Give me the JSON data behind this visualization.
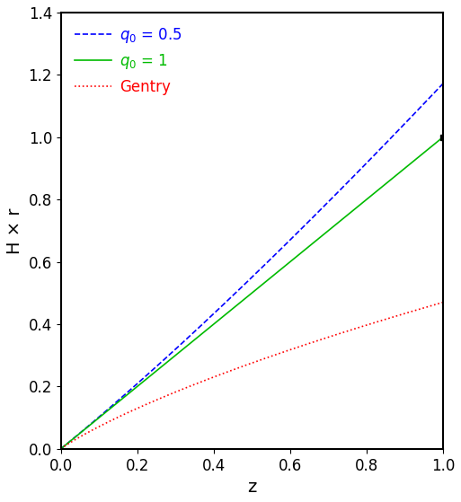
{
  "title": "",
  "xlabel": "z",
  "ylabel": "H × r",
  "xlim": [
    0,
    1
  ],
  "ylim": [
    0,
    1.4
  ],
  "xticks": [
    0,
    0.2,
    0.4,
    0.6,
    0.8,
    1.0
  ],
  "yticks": [
    0,
    0.2,
    0.4,
    0.6,
    0.8,
    1.0,
    1.2,
    1.4
  ],
  "legend_entries": [
    {
      "label": "q$_0$ = 0.5",
      "color": "#0000ff",
      "linestyle": "dashed"
    },
    {
      "label": "q$_0$ = 1",
      "color": "#00bb00",
      "linestyle": "solid"
    },
    {
      "label": "Gentry",
      "color": "#ff0000",
      "linestyle": "dotted"
    }
  ],
  "figsize": [
    5.13,
    5.59
  ],
  "dpi": 100,
  "background": "#ffffff",
  "linewidth": 1.2,
  "tick_fontsize": 12,
  "label_fontsize": 14,
  "legend_fontsize": 12
}
